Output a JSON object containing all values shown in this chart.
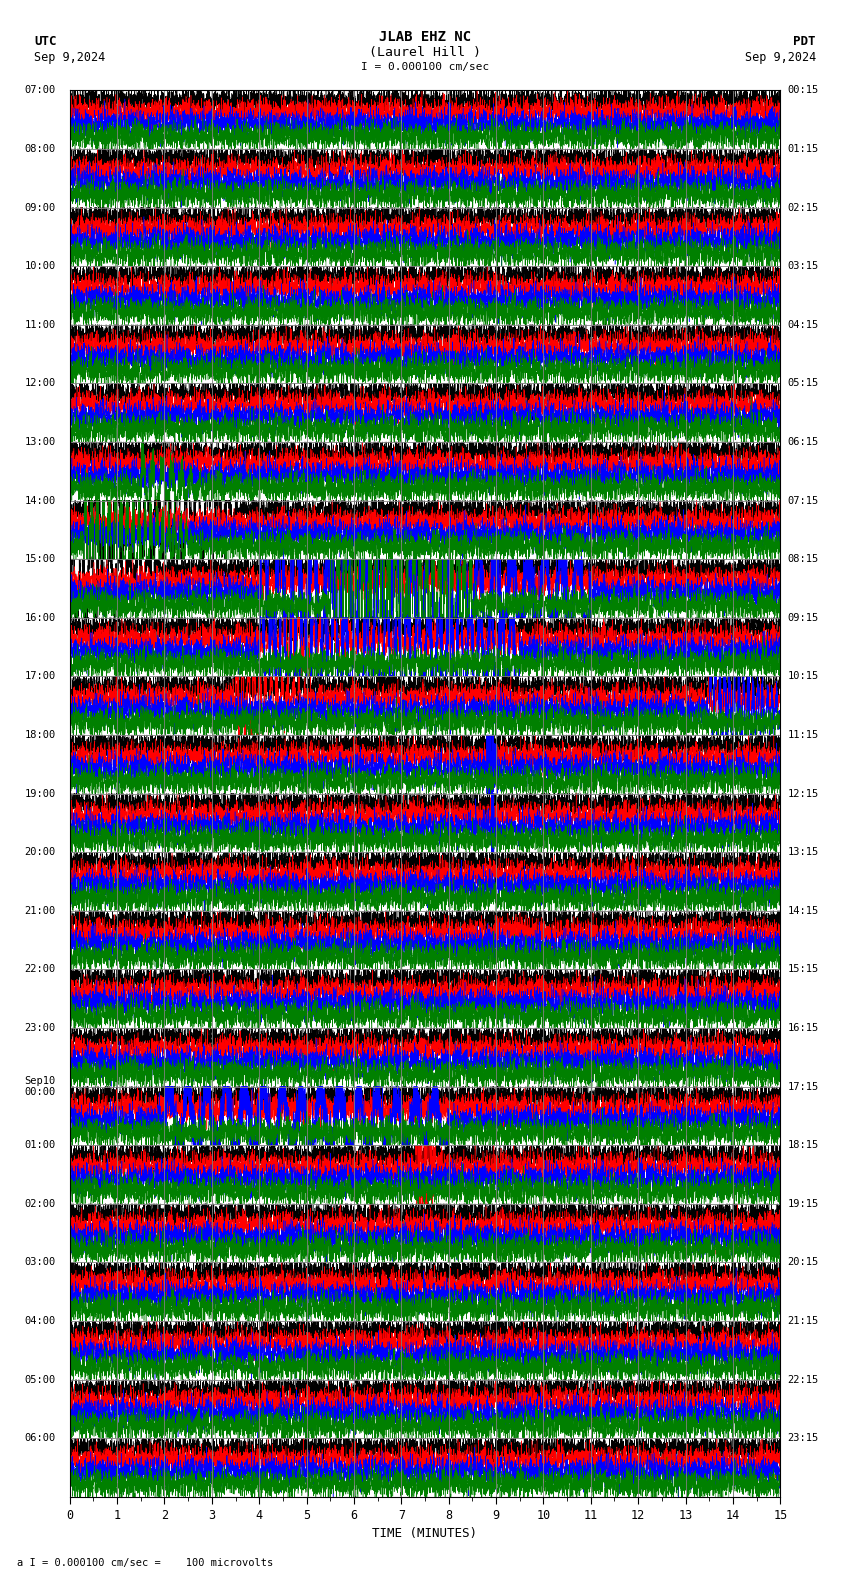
{
  "title_line1": "JLAB EHZ NC",
  "title_line2": "(Laurel Hill )",
  "scale_label": "I = 0.000100 cm/sec",
  "utc_label": "UTC",
  "utc_date": "Sep 9,2024",
  "pdt_label": "PDT",
  "pdt_date": "Sep 9,2024",
  "bottom_label": "a I = 0.000100 cm/sec =    100 microvolts",
  "xlabel": "TIME (MINUTES)",
  "row_labels_left": [
    "07:00",
    "08:00",
    "09:00",
    "10:00",
    "11:00",
    "12:00",
    "13:00",
    "14:00",
    "15:00",
    "16:00",
    "17:00",
    "18:00",
    "19:00",
    "20:00",
    "21:00",
    "22:00",
    "23:00",
    "Sep10\n00:00",
    "01:00",
    "02:00",
    "03:00",
    "04:00",
    "05:00",
    "06:00"
  ],
  "row_labels_right": [
    "00:15",
    "01:15",
    "02:15",
    "03:15",
    "04:15",
    "05:15",
    "06:15",
    "07:15",
    "08:15",
    "09:15",
    "10:15",
    "11:15",
    "12:15",
    "13:15",
    "14:15",
    "15:15",
    "16:15",
    "17:15",
    "18:15",
    "19:15",
    "20:15",
    "21:15",
    "22:15",
    "23:15"
  ],
  "num_rows": 24,
  "minutes_per_row": 15,
  "bg_color": "#ffffff",
  "line_colors": [
    "#000000",
    "#ff0000",
    "#0000ff",
    "#008000"
  ],
  "grid_color": "#808080",
  "noise_amplitude": 0.035,
  "event_amplitude": 0.45
}
